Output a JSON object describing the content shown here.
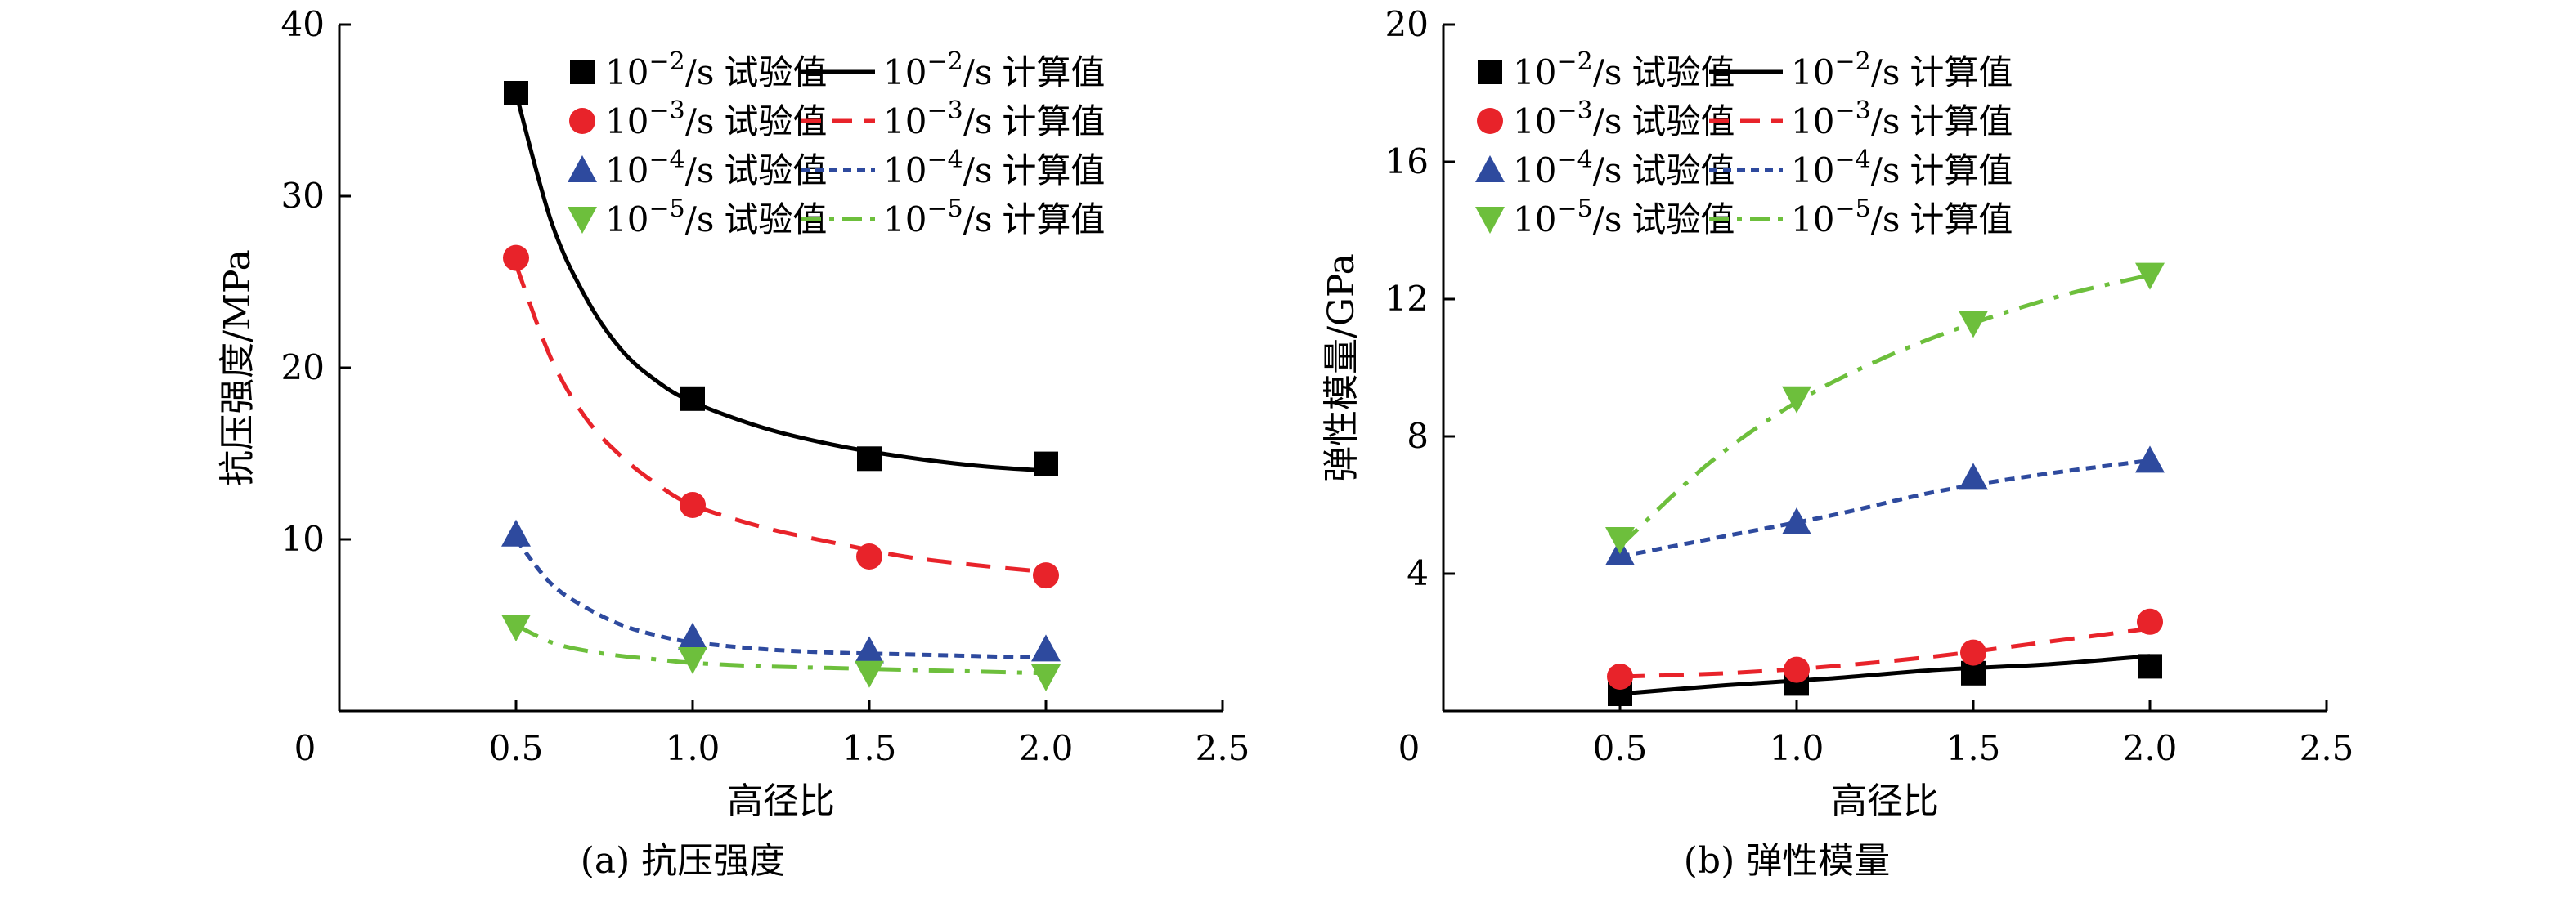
{
  "chart_data": [
    {
      "type": "line",
      "caption": "(a) 抗压强度",
      "xlabel": "高径比",
      "ylabel": "抗压强度/MPa",
      "xlim": [
        0,
        2.5
      ],
      "ylim": [
        0,
        40
      ],
      "x_ticks": [
        0,
        0.5,
        1.0,
        1.5,
        2.0,
        2.5
      ],
      "x_tick_labels": [
        "0",
        "0.5",
        "1.0",
        "1.5",
        "2.0",
        "2.5"
      ],
      "y_ticks": [
        10,
        20,
        30,
        40
      ],
      "y_tick_labels": [
        "10",
        "20",
        "30",
        "40"
      ],
      "legend_position": "top-right",
      "grid": false,
      "series": [
        {
          "rate_base": "10",
          "rate_exp": "−2",
          "rate_unit": "/s",
          "marker": "square",
          "line": "solid",
          "color": "#000000",
          "exp_label": "试验值",
          "calc_label": "计算值",
          "x": [
            0.5,
            1.0,
            1.5,
            2.0
          ],
          "y": [
            36.0,
            18.2,
            14.7,
            14.4
          ],
          "calc_x": [
            0.5,
            0.6,
            0.7,
            0.8,
            0.9,
            1.0,
            1.2,
            1.4,
            1.6,
            1.8,
            2.0
          ],
          "calc_y": [
            36.0,
            28.5,
            24.0,
            21.0,
            19.2,
            18.0,
            16.5,
            15.5,
            14.8,
            14.3,
            14.0
          ]
        },
        {
          "rate_base": "10",
          "rate_exp": "−3",
          "rate_unit": "/s",
          "marker": "circle",
          "line": "dashed",
          "color": "#e8232a",
          "exp_label": "试验值",
          "calc_label": "计算值",
          "x": [
            0.5,
            1.0,
            1.5,
            2.0
          ],
          "y": [
            26.4,
            12.0,
            9.0,
            7.9
          ],
          "calc_x": [
            0.5,
            0.6,
            0.7,
            0.8,
            0.9,
            1.0,
            1.2,
            1.4,
            1.6,
            1.8,
            2.0
          ],
          "calc_y": [
            26.0,
            20.5,
            17.0,
            14.8,
            13.2,
            12.0,
            10.7,
            9.8,
            9.0,
            8.5,
            8.1
          ]
        },
        {
          "rate_base": "10",
          "rate_exp": "−4",
          "rate_unit": "/s",
          "marker": "triangle-up",
          "line": "dotted",
          "color": "#2e4a9e",
          "exp_label": "试验值",
          "calc_label": "计算值",
          "x": [
            0.5,
            1.0,
            1.5,
            2.0
          ],
          "y": [
            10.3,
            4.3,
            3.5,
            3.6
          ],
          "calc_x": [
            0.5,
            0.6,
            0.7,
            0.8,
            0.9,
            1.0,
            1.2,
            1.4,
            1.6,
            1.8,
            2.0
          ],
          "calc_y": [
            10.0,
            7.4,
            6.0,
            5.0,
            4.4,
            4.0,
            3.6,
            3.4,
            3.3,
            3.2,
            3.1
          ]
        },
        {
          "rate_base": "10",
          "rate_exp": "−5",
          "rate_unit": "/s",
          "marker": "triangle-down",
          "line": "dashdot",
          "color": "#6dbf3c",
          "exp_label": "试验值",
          "calc_label": "计算值",
          "x": [
            0.5,
            1.0,
            1.5,
            2.0
          ],
          "y": [
            4.9,
            3.0,
            2.2,
            2.0
          ],
          "calc_x": [
            0.5,
            0.6,
            0.7,
            0.8,
            0.9,
            1.0,
            1.2,
            1.4,
            1.6,
            1.8,
            2.0
          ],
          "calc_y": [
            5.0,
            4.0,
            3.5,
            3.2,
            3.0,
            2.8,
            2.6,
            2.5,
            2.4,
            2.3,
            2.2
          ]
        }
      ]
    },
    {
      "type": "line",
      "caption": "(b) 弹性模量",
      "xlabel": "高径比",
      "ylabel": "弹性模量/GPa",
      "xlim": [
        0,
        2.5
      ],
      "ylim": [
        0,
        20
      ],
      "x_ticks": [
        0,
        0.5,
        1.0,
        1.5,
        2.0,
        2.5
      ],
      "x_tick_labels": [
        "0",
        "0.5",
        "1.0",
        "1.5",
        "2.0",
        "2.5"
      ],
      "y_ticks": [
        4,
        8,
        12,
        16,
        20
      ],
      "y_tick_labels": [
        "4",
        "8",
        "12",
        "16",
        "20"
      ],
      "legend_position": "top-right",
      "grid": false,
      "series": [
        {
          "rate_base": "10",
          "rate_exp": "−2",
          "rate_unit": "/s",
          "marker": "square",
          "line": "solid",
          "color": "#000000",
          "exp_label": "试验值",
          "calc_label": "计算值",
          "x": [
            0.5,
            1.0,
            1.5,
            2.0
          ],
          "y": [
            0.5,
            0.8,
            1.1,
            1.3
          ],
          "calc_x": [
            0.5,
            0.8,
            1.1,
            1.4,
            1.7,
            2.0
          ],
          "calc_y": [
            0.5,
            0.75,
            0.95,
            1.2,
            1.35,
            1.6
          ]
        },
        {
          "rate_base": "10",
          "rate_exp": "−3",
          "rate_unit": "/s",
          "marker": "circle",
          "line": "dashed",
          "color": "#e8232a",
          "exp_label": "试验值",
          "calc_label": "计算值",
          "x": [
            0.5,
            1.0,
            1.5,
            2.0
          ],
          "y": [
            1.0,
            1.2,
            1.7,
            2.6
          ],
          "calc_x": [
            0.5,
            0.8,
            1.1,
            1.4,
            1.7,
            2.0
          ],
          "calc_y": [
            1.0,
            1.1,
            1.3,
            1.6,
            2.0,
            2.4
          ]
        },
        {
          "rate_base": "10",
          "rate_exp": "−4",
          "rate_unit": "/s",
          "marker": "triangle-up",
          "line": "dotted",
          "color": "#2e4a9e",
          "exp_label": "试验值",
          "calc_label": "计算值",
          "x": [
            0.5,
            1.0,
            1.5,
            2.0
          ],
          "y": [
            4.6,
            5.5,
            6.8,
            7.3
          ],
          "calc_x": [
            0.5,
            0.8,
            1.1,
            1.4,
            1.7,
            2.0
          ],
          "calc_y": [
            4.5,
            5.1,
            5.7,
            6.4,
            6.9,
            7.3
          ]
        },
        {
          "rate_base": "10",
          "rate_exp": "−5",
          "rate_unit": "/s",
          "marker": "triangle-down",
          "line": "dashdot",
          "color": "#6dbf3c",
          "exp_label": "试验值",
          "calc_label": "计算值",
          "x": [
            0.5,
            1.0,
            1.5,
            2.0
          ],
          "y": [
            5.0,
            9.1,
            11.3,
            12.7
          ],
          "calc_x": [
            0.5,
            0.75,
            1.0,
            1.25,
            1.5,
            1.75,
            2.0
          ],
          "calc_y": [
            4.8,
            7.2,
            9.0,
            10.3,
            11.3,
            12.1,
            12.7
          ]
        }
      ]
    }
  ]
}
